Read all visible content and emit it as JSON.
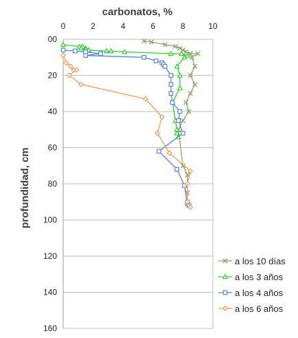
{
  "chart_data": {
    "type": "line",
    "title": "carbonatos,  %",
    "xlabel": "",
    "ylabel": "profundidad,  cm",
    "xlim": [
      0,
      10
    ],
    "ylim": [
      0,
      160
    ],
    "y_inverted": true,
    "x_axis_position": "top",
    "x_ticks": [
      "0",
      "2",
      "4",
      "6",
      "8",
      "10"
    ],
    "y_ticks": [
      "00",
      "20",
      "40",
      "60",
      "80",
      "100",
      "120",
      "140",
      "160"
    ],
    "grid": "horizontal",
    "legend_position": "bottom-right",
    "series": [
      {
        "name": "a los 10 días",
        "color": "#8ea869",
        "marker": "x",
        "x": [
          5.4,
          5.9,
          6.8,
          7.5,
          7.8,
          8.0,
          8.2,
          8.5,
          9.0,
          8.6,
          8.8,
          8.5,
          8.8,
          8.5,
          8.2,
          8.4,
          8.0,
          7.7,
          8.0,
          8.3,
          8.3,
          8.3
        ],
        "y": [
          1,
          1.5,
          3,
          4,
          5,
          6,
          7,
          8,
          8,
          10,
          15,
          20,
          25,
          30,
          35,
          40,
          45,
          50,
          70,
          75,
          85,
          90
        ]
      },
      {
        "name": "a los 3 años",
        "color": "#2dcf2d",
        "marker": "triangle",
        "x": [
          0,
          1.1,
          1.3,
          1.5,
          1.2,
          1.5,
          1.7,
          2.9,
          3.2,
          4.1,
          7.2,
          7.9,
          8.3,
          8.1,
          7.6,
          7.8,
          7.8,
          7.3,
          7.5,
          7.6,
          7.6,
          7.7
        ],
        "y": [
          3,
          4,
          4,
          5,
          5,
          5.5,
          6,
          6.5,
          6.5,
          7,
          8,
          8,
          9,
          10,
          15,
          20,
          27,
          35,
          45,
          50,
          52,
          54
        ]
      },
      {
        "name": "a los 4 años",
        "color": "#5b84d6",
        "marker": "square",
        "x": [
          0,
          0.8,
          1.5,
          2.5,
          1.5,
          5.4,
          6.2,
          6.6,
          6.7,
          6.8,
          7.2,
          7.2,
          7.2,
          7.3,
          7.8,
          7.7,
          8.0,
          6.4,
          7.6,
          8.1,
          8.3,
          8.4
        ],
        "y": [
          6,
          6.5,
          7,
          8,
          9,
          10,
          12,
          13,
          14,
          15,
          20,
          25,
          30,
          35,
          40,
          45,
          52,
          62,
          72,
          81,
          91,
          92
        ]
      },
      {
        "name": "a los 6 años",
        "color": "#ef9a5a",
        "marker": "diamond",
        "x": [
          0,
          0.2,
          0.5,
          0.7,
          0.9,
          0.4,
          1.2,
          5.5,
          6.6,
          6.3,
          7.1,
          8.5,
          8.3,
          8.3,
          8.5
        ],
        "y": [
          9,
          13,
          15,
          17,
          17,
          20,
          25,
          33,
          43,
          52,
          63,
          73,
          80,
          90,
          93
        ]
      }
    ]
  }
}
